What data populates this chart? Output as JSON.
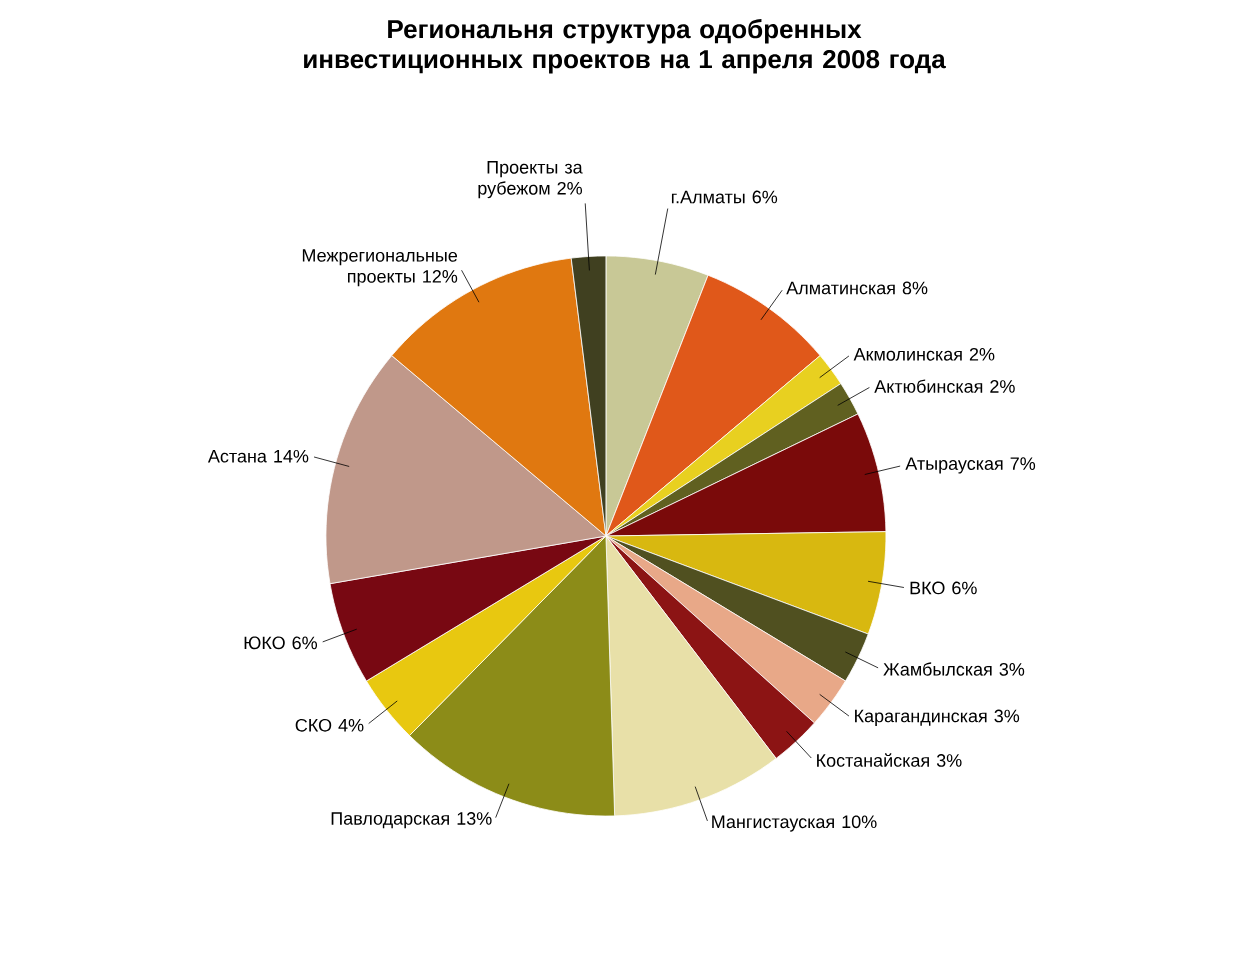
{
  "chart_data": {
    "type": "pie",
    "title": "Региональня структура одобренных инвестиционных проектов на 1 апреля 2008 года",
    "categories": [
      "г.Алматы",
      "Алматинская",
      "Акмолинская",
      "Актюбинская",
      "Атырауская",
      "ВКО",
      "Жамбылская",
      "Карагандинская",
      "Костанайская",
      "Мангистауская",
      "Павлодарская",
      "СКО",
      "ЮКО",
      "Астана",
      "Межрегиональные проекты",
      "Проекты за рубежом"
    ],
    "values": [
      6,
      8,
      2,
      2,
      7,
      6,
      3,
      3,
      3,
      10,
      13,
      4,
      6,
      14,
      12,
      2
    ],
    "value_labels": [
      "6%",
      "8%",
      "2%",
      "2%",
      "7%",
      "6%",
      "3%",
      "3%",
      "3%",
      "10%",
      "13%",
      "4%",
      "6%",
      "14%",
      "12%",
      "2%"
    ],
    "colors": [
      "#c8c896",
      "#e0581a",
      "#e8d020",
      "#606020",
      "#7a0a0a",
      "#d8b810",
      "#505020",
      "#e8a888",
      "#8c1414",
      "#e8e0a8",
      "#8c8c18",
      "#e8c810",
      "#780812",
      "#c0988a",
      "#e07810",
      "#404020"
    ]
  }
}
